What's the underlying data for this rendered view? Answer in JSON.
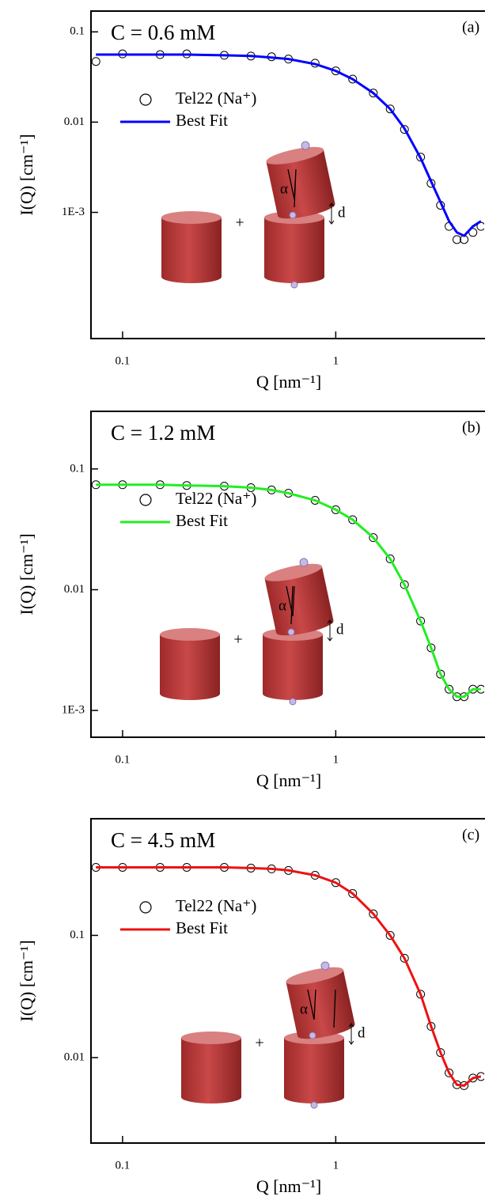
{
  "chart_data": [
    {
      "type": "scatter",
      "title": "C = 0.6 mM",
      "label": "(a)",
      "xlabel": "Q [nm⁻¹]",
      "ylabel": "I(Q) [cm⁻¹]",
      "xscale": "log",
      "yscale": "log",
      "xlim": [
        0.0711,
        4.97
      ],
      "ylim": [
        4e-05,
        0.17
      ],
      "xticks": [
        0.1,
        1
      ],
      "yticks": [
        0.1,
        0.01,
        {
          "value": 0.001,
          "label": "1E-3"
        }
      ],
      "annotations": [
        "α",
        "d"
      ],
      "x": [
        0.075,
        0.1,
        0.15,
        0.2,
        0.3,
        0.4,
        0.5,
        0.6,
        0.8,
        1,
        1.2,
        1.5,
        1.8,
        2.1,
        2.5,
        2.8,
        3.1,
        3.4,
        3.7,
        4.0,
        4.4,
        4.8
      ],
      "series": [
        {
          "name": "Tel22 (Na⁺)",
          "color": "#000000",
          "mode": "markers",
          "values": [
            0.047,
            0.057,
            0.056,
            0.057,
            0.055,
            0.054,
            0.053,
            0.05,
            0.045,
            0.037,
            0.03,
            0.021,
            0.014,
            0.0083,
            0.0041,
            0.0021,
            0.0012,
            0.0007,
            0.0005,
            0.0005,
            0.0006,
            0.0007
          ]
        },
        {
          "name": "Best Fit",
          "color": "#0000ff",
          "mode": "lines",
          "values": [
            0.056,
            0.056,
            0.056,
            0.056,
            0.055,
            0.054,
            0.052,
            0.05,
            0.044,
            0.037,
            0.03,
            0.021,
            0.014,
            0.0085,
            0.004,
            0.0022,
            0.0013,
            0.0008,
            0.0006,
            0.00055,
            0.0007,
            0.0008
          ]
        }
      ]
    },
    {
      "type": "scatter",
      "title": "C = 1.2 mM",
      "label": "(b)",
      "xlabel": "Q [nm⁻¹]",
      "ylabel": "I(Q) [cm⁻¹]",
      "xscale": "log",
      "yscale": "log",
      "xlim": [
        0.0711,
        4.97
      ],
      "ylim": [
        0.0006,
        0.3
      ],
      "xticks": [
        0.1,
        1
      ],
      "yticks": [
        0.1,
        0.01,
        {
          "value": 0.001,
          "label": "1E-3"
        }
      ],
      "annotations": [
        "α",
        "d"
      ],
      "x": [
        0.075,
        0.1,
        0.15,
        0.2,
        0.3,
        0.4,
        0.5,
        0.6,
        0.8,
        1,
        1.2,
        1.5,
        1.8,
        2.1,
        2.5,
        2.8,
        3.1,
        3.4,
        3.7,
        4.0,
        4.4,
        4.8
      ],
      "series": [
        {
          "name": "Tel22 (Na⁺)",
          "color": "#000000",
          "mode": "markers",
          "values": [
            0.074,
            0.074,
            0.074,
            0.073,
            0.072,
            0.07,
            0.067,
            0.063,
            0.055,
            0.046,
            0.038,
            0.027,
            0.018,
            0.011,
            0.0055,
            0.0033,
            0.002,
            0.0015,
            0.0013,
            0.0013,
            0.0015,
            0.0015
          ]
        },
        {
          "name": "Best Fit",
          "color": "#22ee22",
          "mode": "lines",
          "values": [
            0.074,
            0.074,
            0.074,
            0.073,
            0.072,
            0.07,
            0.067,
            0.063,
            0.055,
            0.046,
            0.038,
            0.027,
            0.018,
            0.011,
            0.0055,
            0.0033,
            0.002,
            0.0015,
            0.0013,
            0.0013,
            0.0015,
            0.0015
          ]
        }
      ]
    },
    {
      "type": "scatter",
      "title": "C = 4.5 mM",
      "label": "(c)",
      "xlabel": "Q [nm⁻¹]",
      "ylabel": "I(Q) [cm⁻¹]",
      "xscale": "log",
      "yscale": "log",
      "xlim": [
        0.0711,
        4.97
      ],
      "ylim": [
        0.002,
        0.9
      ],
      "xticks": [
        0.1,
        1
      ],
      "yticks": [
        0.1,
        0.01
      ],
      "annotations": [
        "α",
        "d"
      ],
      "x": [
        0.075,
        0.1,
        0.15,
        0.2,
        0.3,
        0.4,
        0.5,
        0.6,
        0.8,
        1,
        1.2,
        1.5,
        1.8,
        2.1,
        2.5,
        2.8,
        3.1,
        3.4,
        3.7,
        4.0,
        4.4,
        4.8
      ],
      "series": [
        {
          "name": "Tel22 (Na⁺)",
          "color": "#000000",
          "mode": "markers",
          "values": [
            0.36,
            0.36,
            0.36,
            0.36,
            0.36,
            0.355,
            0.35,
            0.34,
            0.31,
            0.27,
            0.22,
            0.15,
            0.1,
            0.065,
            0.033,
            0.018,
            0.011,
            0.0075,
            0.006,
            0.0059,
            0.0068,
            0.007
          ]
        },
        {
          "name": "Best Fit",
          "color": "#ee1111",
          "mode": "lines",
          "values": [
            0.36,
            0.36,
            0.36,
            0.36,
            0.36,
            0.355,
            0.35,
            0.34,
            0.31,
            0.27,
            0.22,
            0.15,
            0.1,
            0.065,
            0.033,
            0.018,
            0.011,
            0.0075,
            0.006,
            0.0059,
            0.0068,
            0.007
          ]
        }
      ]
    }
  ]
}
